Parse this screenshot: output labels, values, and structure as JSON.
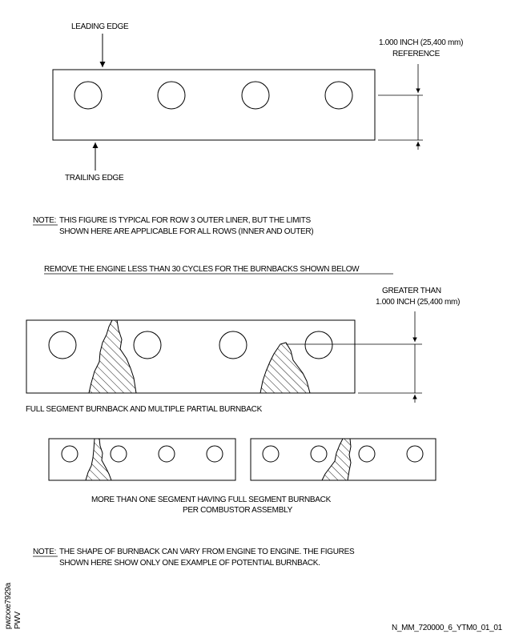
{
  "figure1": {
    "leading_edge": "LEADING EDGE",
    "trailing_edge": "TRAILING EDGE",
    "dimension_line1": "1.000 INCH (25,400 mm)",
    "dimension_line2": "REFERENCE"
  },
  "note1": {
    "label": "NOTE:",
    "line1": "THIS FIGURE IS TYPICAL FOR ROW 3 OUTER LINER, BUT THE LIMITS",
    "line2": "SHOWN HERE ARE APPLICABLE FOR ALL ROWS (INNER AND OUTER)"
  },
  "instruction": "REMOVE THE ENGINE LESS THAN 30 CYCLES FOR THE BURNBACKS SHOWN BELOW",
  "figure2": {
    "dimension_line1": "GREATER THAN",
    "dimension_line2": "1.000 INCH (25,400 mm)",
    "caption": "FULL SEGMENT BURNBACK AND MULTIPLE PARTIAL BURNBACK"
  },
  "figure3": {
    "caption_line1": "MORE THAN ONE SEGMENT HAVING FULL SEGMENT BURNBACK",
    "caption_line2": "PER COMBUSTOR ASSEMBLY"
  },
  "note2": {
    "label": "NOTE:",
    "line1": "THE SHAPE OF BURNBACK CAN VARY FROM ENGINE TO ENGINE. THE FIGURES",
    "line2": "SHOWN HERE SHOW ONLY ONE EXAMPLE OF POTENTIAL BURNBACK."
  },
  "side_code_line1": "pwzxxe7929a",
  "side_code_line2": "PWV",
  "figure_id": "N_MM_720000_6_YTM0_01_01"
}
